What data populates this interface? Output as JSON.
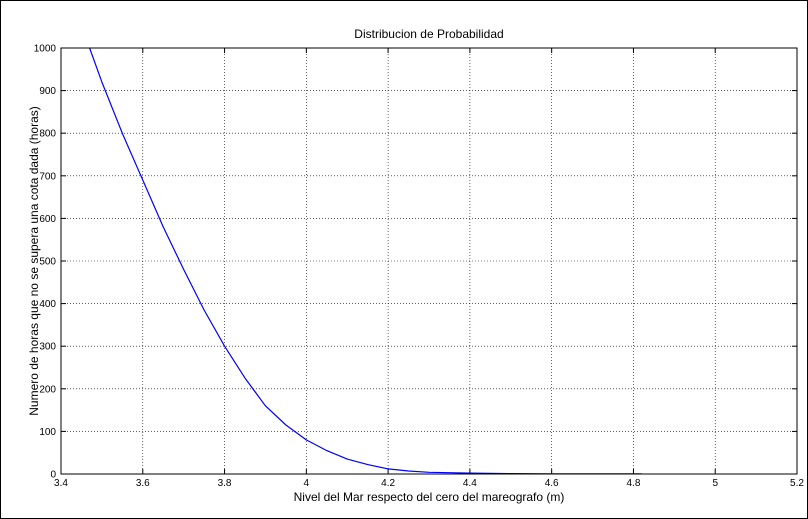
{
  "chart_data": {
    "type": "line",
    "title": "Distribucion de Probabilidad",
    "xlabel": "Nivel del Mar respecto del cero del mareografo (m)",
    "ylabel": "Numero de horas que no se supera una cota dada (horas)",
    "xlim": [
      3.4,
      5.2
    ],
    "ylim": [
      0,
      1000
    ],
    "xticks": [
      "3.4",
      "3.6",
      "3.8",
      "4",
      "4.2",
      "4.4",
      "4.6",
      "4.8",
      "5",
      "5.2"
    ],
    "yticks": [
      "0",
      "100",
      "200",
      "300",
      "400",
      "500",
      "600",
      "700",
      "800",
      "900",
      "1000"
    ],
    "grid": true,
    "series": [
      {
        "color": "#0000ff",
        "x": [
          3.47,
          3.5,
          3.55,
          3.6,
          3.65,
          3.7,
          3.75,
          3.8,
          3.85,
          3.9,
          3.95,
          4.0,
          4.05,
          4.1,
          4.15,
          4.2,
          4.25,
          4.3,
          4.35,
          4.4,
          4.5,
          4.6,
          4.7,
          4.8,
          4.82
        ],
        "y": [
          1000,
          920,
          800,
          690,
          580,
          480,
          385,
          300,
          225,
          160,
          115,
          80,
          55,
          35,
          22,
          12,
          7,
          4,
          3,
          2,
          1,
          0.5,
          0.3,
          0.2,
          0.2
        ]
      }
    ]
  }
}
